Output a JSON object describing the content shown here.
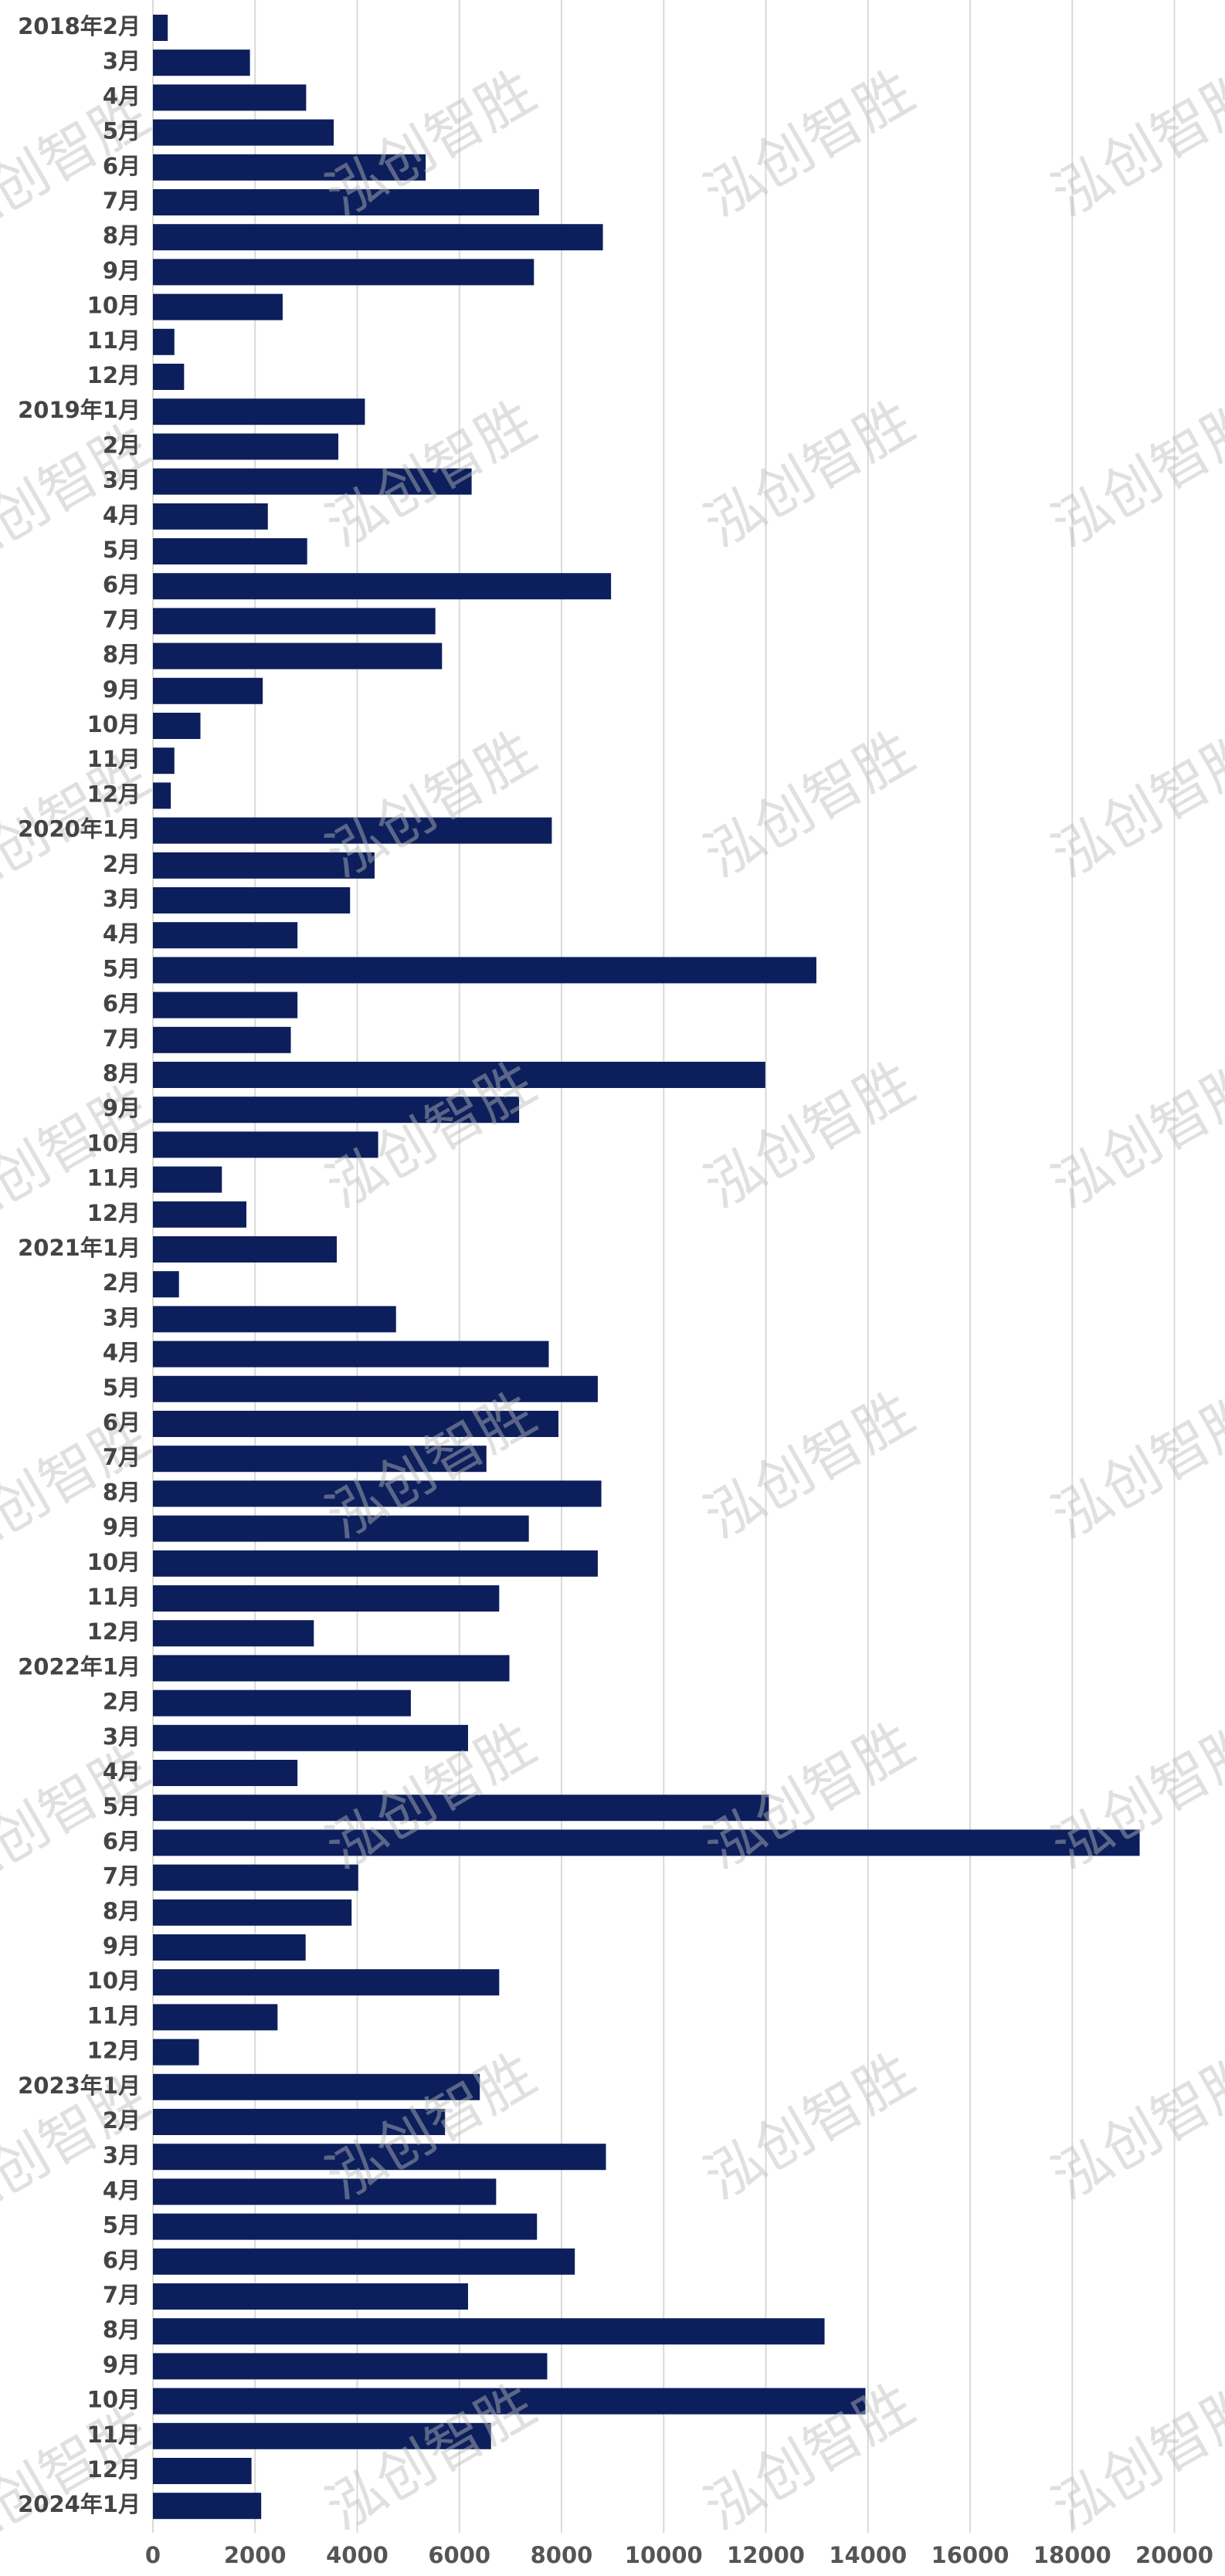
{
  "chart_data": {
    "type": "bar",
    "orientation": "horizontal",
    "color": "#0c1f5c",
    "grid": true,
    "watermark": "泓创智胜",
    "categories": [
      "2018年2月",
      "3月",
      "4月",
      "5月",
      "6月",
      "7月",
      "8月",
      "9月",
      "10月",
      "11月",
      "12月",
      "2019年1月",
      "2月",
      "3月",
      "4月",
      "5月",
      "6月",
      "7月",
      "8月",
      "9月",
      "10月",
      "11月",
      "12月",
      "2020年1月",
      "2月",
      "3月",
      "4月",
      "5月",
      "6月",
      "7月",
      "8月",
      "9月",
      "10月",
      "11月",
      "12月",
      "2021年1月",
      "2月",
      "3月",
      "4月",
      "5月",
      "6月",
      "7月",
      "8月",
      "9月",
      "10月",
      "11月",
      "12月",
      "2022年1月",
      "2月",
      "3月",
      "4月",
      "5月",
      "6月",
      "7月",
      "8月",
      "9月",
      "10月",
      "11月",
      "12月",
      "2023年1月",
      "2月",
      "3月",
      "4月",
      "5月",
      "6月",
      "7月",
      "8月",
      "9月",
      "10月",
      "11月",
      "12月",
      "2024年1月"
    ],
    "values": [
      290,
      1900,
      3000,
      3540,
      5340,
      7560,
      8810,
      7460,
      2540,
      420,
      610,
      4150,
      3630,
      6240,
      2250,
      3020,
      8970,
      5530,
      5660,
      2150,
      930,
      420,
      350,
      7810,
      4340,
      3860,
      2830,
      12990,
      2830,
      2700,
      11990,
      7170,
      4410,
      1350,
      1830,
      3600,
      510,
      4760,
      7750,
      8710,
      7940,
      6530,
      8780,
      7360,
      8710,
      6780,
      3150,
      6980,
      5050,
      6170,
      2830,
      12060,
      19320,
      4020,
      3890,
      2990,
      6780,
      2440,
      900,
      6400,
      5720,
      8870,
      6720,
      7520,
      8260,
      6170,
      13150,
      7720,
      13950,
      6620,
      1930,
      2120
    ],
    "xlim": [
      0,
      20900
    ],
    "xticks": [
      0,
      2000,
      4000,
      6000,
      8000,
      10000,
      12000,
      14000,
      16000,
      18000,
      20000
    ]
  }
}
